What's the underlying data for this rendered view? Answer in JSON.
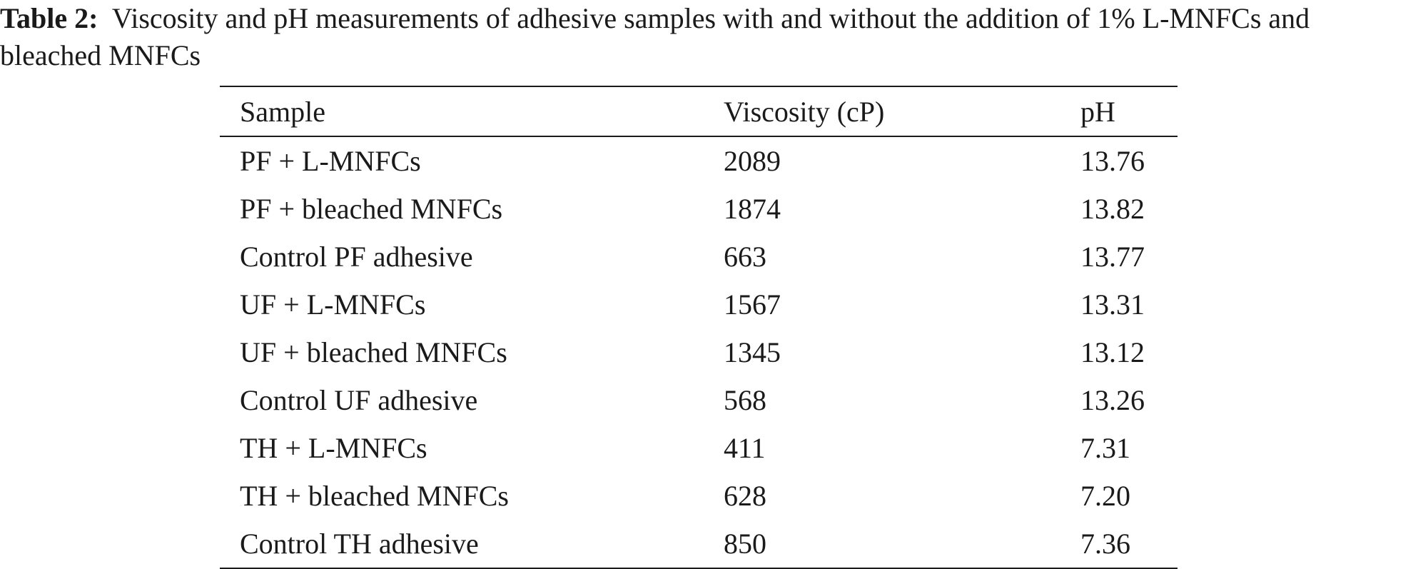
{
  "caption": {
    "label": "Table 2:",
    "text": "Viscosity and pH measurements of adhesive samples with and without the addition of 1% L-MNFCs and bleached MNFCs"
  },
  "table": {
    "headers": [
      "Sample",
      "Viscosity (cP)",
      "pH"
    ],
    "rows": [
      [
        "PF + L-MNFCs",
        "2089",
        "13.76"
      ],
      [
        "PF + bleached MNFCs",
        "1874",
        "13.82"
      ],
      [
        "Control PF adhesive",
        "663",
        "13.77"
      ],
      [
        "UF + L-MNFCs",
        "1567",
        "13.31"
      ],
      [
        "UF + bleached MNFCs",
        "1345",
        "13.12"
      ],
      [
        "Control UF adhesive",
        "568",
        "13.26"
      ],
      [
        "TH + L-MNFCs",
        "411",
        "7.31"
      ],
      [
        "TH + bleached MNFCs",
        "628",
        "7.20"
      ],
      [
        "Control TH adhesive",
        "850",
        "7.36"
      ]
    ]
  }
}
